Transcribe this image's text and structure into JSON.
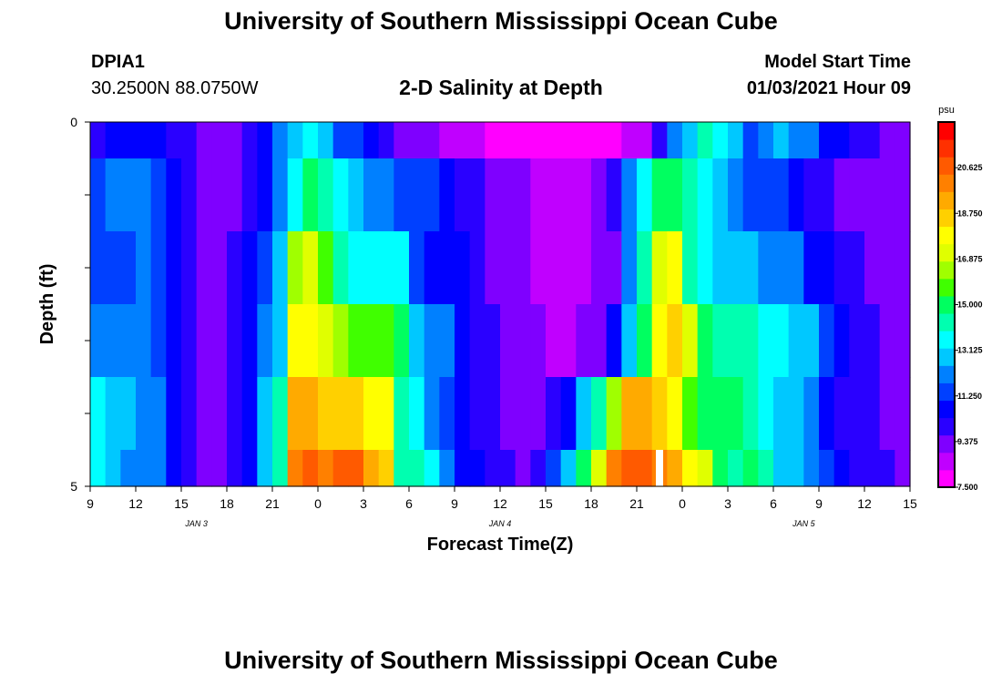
{
  "page": {
    "title_top": "University of Southern Mississippi Ocean Cube",
    "title_bottom": "University of Southern Mississippi Ocean Cube",
    "station_id": "DPIA1",
    "station_coords": "30.2500N 88.0750W",
    "plot_title": "2-D Salinity at Depth",
    "model_start_label": "Model Start Time",
    "model_start_value": "01/03/2021 Hour 09"
  },
  "chart_data": {
    "type": "heatmap",
    "title": "2-D Salinity at Depth",
    "xlabel": "Forecast Time(Z)",
    "ylabel": "Depth (ft)",
    "x_tick_labels": [
      "9",
      "12",
      "15",
      "18",
      "21",
      "0",
      "3",
      "6",
      "9",
      "12",
      "15",
      "18",
      "21",
      "0",
      "3",
      "6",
      "9",
      "12",
      "15"
    ],
    "date_labels": [
      {
        "label": "JAN 3",
        "hour_index": 7
      },
      {
        "label": "JAN 4",
        "hour_index": 27
      },
      {
        "label": "JAN 5",
        "hour_index": 47
      }
    ],
    "y_tick_labels": [
      "0",
      "5"
    ],
    "y_range": [
      0,
      5
    ],
    "x_range_hours": [
      0,
      54
    ],
    "colorbar": {
      "unit": "psu",
      "ticks": [
        "7.500",
        "9.375",
        "11.250",
        "13.125",
        "15.000",
        "16.875",
        "18.750",
        "20.625"
      ],
      "range": [
        7.5,
        22.5
      ],
      "colors": [
        "#ff00ff",
        "#c000ff",
        "#7f00ff",
        "#2a00ff",
        "#0000ff",
        "#0040ff",
        "#0080ff",
        "#00c8ff",
        "#00ffff",
        "#00ffb0",
        "#00ff60",
        "#40ff00",
        "#a0ff00",
        "#e0ff00",
        "#ffff00",
        "#ffd000",
        "#ffaa00",
        "#ff8000",
        "#ff5a00",
        "#ff3000",
        "#ff0000"
      ]
    },
    "time_hours": [
      0,
      1,
      2,
      3,
      4,
      5,
      6,
      7,
      8,
      9,
      10,
      11,
      12,
      13,
      14,
      15,
      16,
      17,
      18,
      19,
      20,
      21,
      22,
      23,
      24,
      25,
      26,
      27,
      28,
      29,
      30,
      31,
      32,
      33,
      34,
      35,
      36,
      37,
      38,
      39,
      40,
      41,
      42,
      43,
      44,
      45,
      46,
      47,
      48,
      49,
      50,
      51,
      52,
      53
    ],
    "depth_rows": [
      "0-0.5",
      "0.5-1.5",
      "1.5-2.5",
      "2.5-3.5",
      "3.5-4.5",
      "4.5-5"
    ],
    "salinity": [
      [
        10.2,
        10.4,
        10.7,
        11.0,
        10.8,
        10.2,
        9.8,
        9.6,
        9.5,
        9.6,
        10.0,
        10.9,
        12.0,
        13.2,
        13.8,
        12.6,
        11.5,
        11.2,
        10.5,
        9.8,
        9.6,
        9.4,
        9.1,
        8.9,
        8.6,
        8.4,
        8.2,
        8.0,
        7.9,
        7.8,
        7.6,
        7.5,
        7.6,
        7.8,
        8.1,
        8.4,
        8.9,
        10.3,
        11.8,
        13.2,
        14.0,
        13.6,
        12.8,
        11.5,
        12.0,
        12.6,
        12.4,
        12.0,
        11.0,
        10.4,
        10.0,
        9.8,
        9.5,
        9.4
      ],
      [
        11.6,
        11.8,
        11.8,
        11.9,
        11.7,
        10.5,
        9.8,
        9.6,
        9.4,
        9.6,
        10.2,
        10.8,
        11.8,
        13.5,
        14.8,
        14.2,
        13.5,
        12.5,
        12.0,
        11.8,
        11.7,
        11.5,
        11.3,
        10.5,
        10.0,
        9.8,
        9.5,
        9.2,
        9.0,
        8.8,
        8.6,
        8.7,
        8.9,
        9.4,
        10.2,
        11.8,
        13.5,
        14.8,
        15.0,
        14.3,
        13.5,
        12.5,
        11.8,
        11.6,
        11.5,
        11.3,
        10.6,
        10.0,
        9.8,
        9.6,
        9.5,
        9.4,
        9.3,
        9.2
      ],
      [
        11.5,
        11.5,
        11.6,
        11.8,
        11.2,
        10.5,
        9.8,
        9.6,
        9.5,
        9.8,
        10.5,
        11.5,
        12.5,
        16.5,
        16.8,
        15.5,
        14.3,
        13.6,
        13.5,
        13.6,
        13.5,
        11.5,
        11.0,
        10.8,
        10.5,
        9.8,
        9.5,
        9.3,
        9.1,
        8.9,
        8.8,
        8.7,
        8.8,
        9.0,
        9.6,
        12.0,
        14.2,
        17.2,
        17.5,
        14.5,
        13.8,
        13.2,
        12.8,
        12.5,
        12.3,
        12.0,
        11.8,
        11.0,
        10.5,
        10.0,
        9.8,
        9.6,
        9.4,
        9.3
      ],
      [
        12.4,
        12.0,
        11.8,
        11.8,
        11.5,
        10.6,
        9.8,
        9.6,
        9.5,
        9.7,
        10.5,
        11.8,
        13.0,
        18.0,
        17.5,
        16.8,
        16.2,
        16.0,
        15.5,
        15.8,
        14.8,
        12.5,
        12.2,
        12.0,
        10.8,
        10.0,
        9.8,
        9.5,
        9.2,
        9.0,
        8.8,
        8.9,
        9.1,
        9.6,
        11.0,
        13.0,
        15.0,
        18.0,
        18.5,
        17.0,
        15.2,
        14.5,
        14.2,
        14.0,
        13.8,
        13.5,
        12.8,
        12.5,
        11.5,
        10.5,
        10.0,
        9.8,
        9.5,
        9.4
      ],
      [
        13.8,
        13.2,
        12.5,
        12.0,
        11.8,
        10.8,
        9.8,
        9.6,
        9.5,
        9.8,
        10.8,
        12.5,
        14.0,
        19.2,
        19.0,
        18.8,
        18.6,
        18.4,
        18.2,
        18.0,
        14.0,
        13.5,
        12.0,
        11.2,
        10.5,
        10.0,
        9.8,
        9.6,
        9.4,
        9.3,
        9.8,
        11.0,
        12.5,
        14.5,
        16.2,
        19.0,
        19.5,
        18.8,
        17.5,
        16.0,
        15.2,
        15.0,
        14.8,
        14.2,
        13.5,
        12.8,
        12.5,
        11.8,
        10.8,
        10.2,
        9.9,
        9.7,
        9.5,
        9.4
      ],
      [
        13.5,
        12.8,
        12.2,
        12.0,
        11.8,
        10.8,
        9.8,
        9.6,
        9.5,
        9.8,
        11.0,
        13.0,
        14.5,
        20.2,
        20.5,
        20.3,
        20.8,
        20.5,
        19.5,
        18.8,
        14.5,
        14.2,
        13.8,
        12.0,
        11.0,
        10.5,
        10.0,
        9.8,
        9.6,
        9.9,
        11.5,
        13.0,
        14.8,
        17.0,
        20.0,
        20.8,
        21.0,
        20.2,
        19.0,
        18.2,
        17.0,
        15.2,
        14.5,
        14.8,
        14.0,
        13.2,
        12.8,
        12.0,
        11.5,
        10.8,
        10.3,
        10.0,
        9.8,
        9.6
      ]
    ]
  }
}
